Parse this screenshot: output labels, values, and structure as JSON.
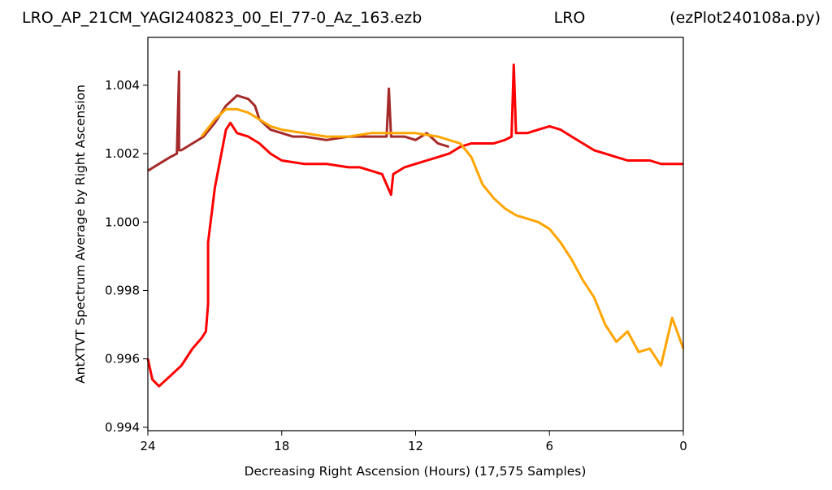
{
  "header": {
    "title_left": "LRO_AP_21CM_YAGI240823_00_El_77-0_Az_163.ezb",
    "title_center": "LRO",
    "title_right": "(ezPlot240108a.py)"
  },
  "chart_data": {
    "type": "line",
    "xlabel": "Decreasing Right Ascension (Hours) (17,575 Samples)",
    "ylabel": "AntXTVT Spectrum Average by Right Ascension",
    "xlim": [
      24,
      0
    ],
    "ylim": [
      0.9939,
      1.0054
    ],
    "x_ticks": [
      24,
      18,
      12,
      6,
      0
    ],
    "x_tick_labels": [
      "24",
      "18",
      "12",
      "6",
      "0"
    ],
    "y_ticks": [
      0.994,
      0.996,
      0.998,
      1.0,
      1.002,
      1.004
    ],
    "y_tick_labels": [
      "0.994",
      "0.996",
      "0.998",
      "1.000",
      "1.002",
      "1.004"
    ],
    "grid": false,
    "legend": "none",
    "series": [
      {
        "color": "#a52a2a",
        "x": [
          24.0,
          23.5,
          23.0,
          22.7,
          22.6,
          22.6,
          22.5,
          22.0,
          21.5,
          21.0,
          20.5,
          20.0,
          19.5,
          19.2,
          19.0,
          18.5,
          18.0,
          17.5,
          17.0,
          16.0,
          15.0,
          14.0,
          13.3,
          13.2,
          13.1,
          12.5,
          12.0,
          11.5,
          11.0,
          10.5
        ],
        "y": [
          1.0015,
          1.0017,
          1.0019,
          1.002,
          1.0044,
          1.0021,
          1.0021,
          1.0023,
          1.0025,
          1.0029,
          1.0034,
          1.0037,
          1.0036,
          1.0034,
          1.003,
          1.0027,
          1.0026,
          1.0025,
          1.0025,
          1.0024,
          1.0025,
          1.0025,
          1.0025,
          1.0039,
          1.0025,
          1.0025,
          1.0024,
          1.0026,
          1.0023,
          1.0022
        ]
      },
      {
        "color": "#ff0000",
        "x": [
          24.0,
          23.8,
          23.5,
          23.0,
          22.5,
          22.0,
          21.6,
          21.4,
          21.3,
          21.3,
          21.0,
          20.5,
          20.3,
          20.0,
          19.5,
          19.0,
          18.5,
          18.0,
          17.0,
          16.0,
          15.0,
          14.5,
          14.0,
          13.5,
          13.3,
          13.1,
          13.0,
          12.5,
          12.0,
          11.5,
          11.0,
          10.5,
          10.0,
          9.5,
          9.0,
          8.5,
          8.0,
          7.7,
          7.6,
          7.5,
          7.0,
          6.5,
          6.0,
          5.5,
          5.0,
          4.5,
          4.0,
          3.5,
          3.0,
          2.5,
          2.0,
          1.5,
          1.0,
          0.5,
          0.0
        ],
        "y": [
          0.996,
          0.9954,
          0.9952,
          0.9955,
          0.9958,
          0.9963,
          0.9966,
          0.9968,
          0.9976,
          0.9994,
          1.001,
          1.0027,
          1.0029,
          1.0026,
          1.0025,
          1.0023,
          1.002,
          1.0018,
          1.0017,
          1.0017,
          1.0016,
          1.0016,
          1.0015,
          1.0014,
          1.0011,
          1.0008,
          1.0014,
          1.0016,
          1.0017,
          1.0018,
          1.0019,
          1.002,
          1.0022,
          1.0023,
          1.0023,
          1.0023,
          1.0024,
          1.0025,
          1.0046,
          1.0026,
          1.0026,
          1.0027,
          1.0028,
          1.0027,
          1.0025,
          1.0023,
          1.0021,
          1.002,
          1.0019,
          1.0018,
          1.0018,
          1.0018,
          1.0017,
          1.0017,
          1.0017
        ]
      },
      {
        "color": "#ffa500",
        "x": [
          21.6,
          21.0,
          20.5,
          20.0,
          19.5,
          19.0,
          18.5,
          18.0,
          17.0,
          16.0,
          15.0,
          14.0,
          13.0,
          12.0,
          11.0,
          10.0,
          9.5,
          9.0,
          8.5,
          8.0,
          7.5,
          7.0,
          6.5,
          6.0,
          5.5,
          5.0,
          4.5,
          4.0,
          3.5,
          3.0,
          2.5,
          2.0,
          1.5,
          1.0,
          0.5,
          0.0
        ],
        "y": [
          1.0025,
          1.003,
          1.0033,
          1.0033,
          1.0032,
          1.003,
          1.0028,
          1.0027,
          1.0026,
          1.0025,
          1.0025,
          1.0026,
          1.0026,
          1.0026,
          1.0025,
          1.0023,
          1.0019,
          1.0011,
          1.0007,
          1.0004,
          1.0002,
          1.0001,
          1.0,
          0.9998,
          0.9994,
          0.9989,
          0.9983,
          0.9978,
          0.997,
          0.9965,
          0.9968,
          0.9962,
          0.9963,
          0.9958,
          0.9972,
          0.9963
        ]
      }
    ]
  }
}
